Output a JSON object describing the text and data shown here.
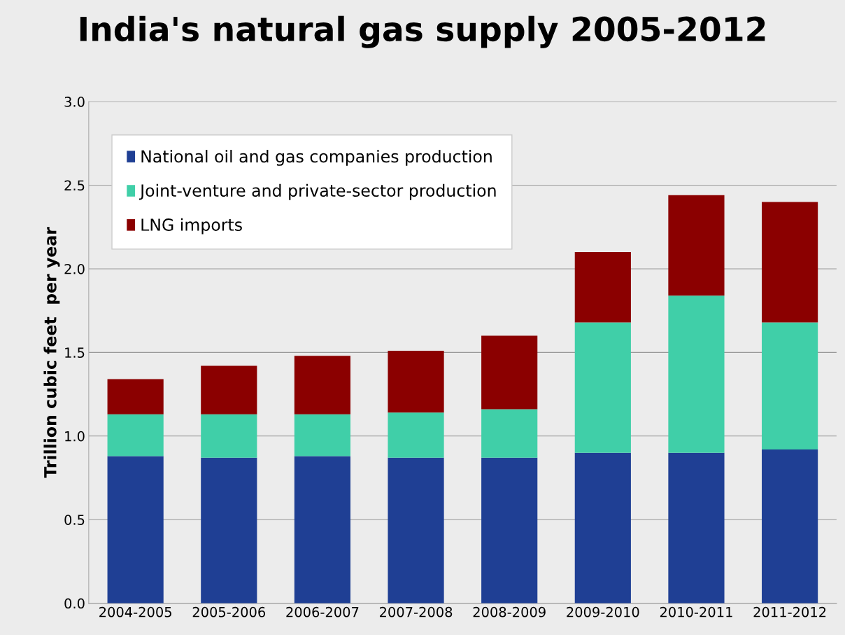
{
  "chart_data": {
    "type": "bar",
    "title": "India's natural gas supply 2005-2012",
    "ylabel": "Trillion cubic feet  per year",
    "categories": [
      "2004-2005",
      "2005-2006",
      "2006-2007",
      "2007-2008",
      "2008-2009",
      "2009-2010",
      "2010-2011",
      "2011-2012"
    ],
    "stacked": true,
    "series": [
      {
        "name": "National oil and gas companies production",
        "color": "#1f3f94",
        "values": [
          0.88,
          0.87,
          0.88,
          0.87,
          0.87,
          0.9,
          0.9,
          0.92
        ]
      },
      {
        "name": "Joint-venture and private-sector production",
        "color": "#40cfa8",
        "values": [
          0.25,
          0.26,
          0.25,
          0.27,
          0.29,
          0.78,
          0.94,
          0.76
        ]
      },
      {
        "name": "LNG imports",
        "color": "#8b0000",
        "values": [
          0.21,
          0.29,
          0.35,
          0.37,
          0.44,
          0.42,
          0.6,
          0.72
        ]
      }
    ],
    "ylim": [
      0,
      3
    ],
    "yticks": [
      {
        "value": 0,
        "label": "0.0"
      },
      {
        "value": 0.5,
        "label": "0.5"
      },
      {
        "value": 1,
        "label": "1.0"
      },
      {
        "value": 1.5,
        "label": "1.5"
      },
      {
        "value": 2,
        "label": "2.0"
      },
      {
        "value": 2.5,
        "label": "2.5"
      },
      {
        "value": 3,
        "label": "3.0"
      }
    ],
    "grid": "y",
    "legend": "top left"
  }
}
